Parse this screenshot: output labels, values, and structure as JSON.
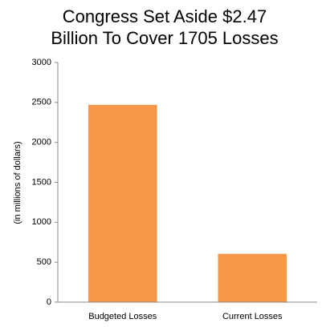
{
  "chart_data": {
    "type": "bar",
    "title": [
      "Congress Set Aside $2.47",
      "Billion To Cover 1705 Losses"
    ],
    "y_label": "(in millions of dollars)",
    "categories": [
      "Budgeted Losses",
      "Current Losses"
    ],
    "values": [
      2470,
      605
    ],
    "color": "#f79646",
    "ylim": [
      0,
      3000
    ],
    "yticks": [
      0,
      500,
      1000,
      1500,
      2000,
      2500,
      3000
    ],
    "grid": false
  }
}
